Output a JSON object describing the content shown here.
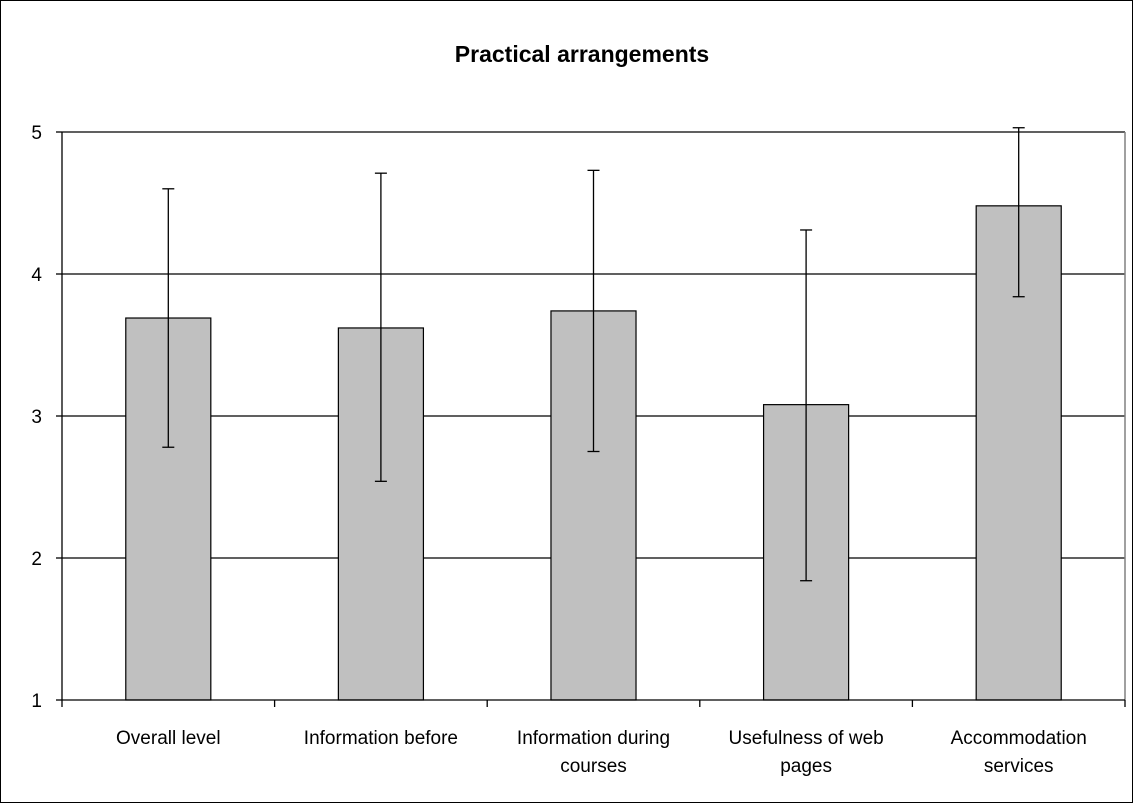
{
  "chart_data": {
    "type": "bar",
    "title": "Practical arrangements",
    "xlabel": "",
    "ylabel": "",
    "ylim": [
      1,
      5
    ],
    "yticks": [
      1,
      2,
      3,
      4,
      5
    ],
    "grid": true,
    "categories": [
      [
        "Overall level"
      ],
      [
        "Information before"
      ],
      [
        "Information during",
        "courses"
      ],
      [
        "Usefulness of web",
        "pages"
      ],
      [
        "Accommodation",
        "services"
      ]
    ],
    "values": [
      3.69,
      3.62,
      3.74,
      3.08,
      4.48
    ],
    "error_upper": [
      4.6,
      4.71,
      4.73,
      4.31,
      5.03
    ],
    "error_lower": [
      2.78,
      2.54,
      2.75,
      1.84,
      3.84
    ],
    "colors": {
      "bar_fill": "#c0c0c0",
      "bar_stroke": "#000000",
      "grid": "#000000",
      "plot_border": "#808080",
      "frame": "#000000"
    }
  }
}
